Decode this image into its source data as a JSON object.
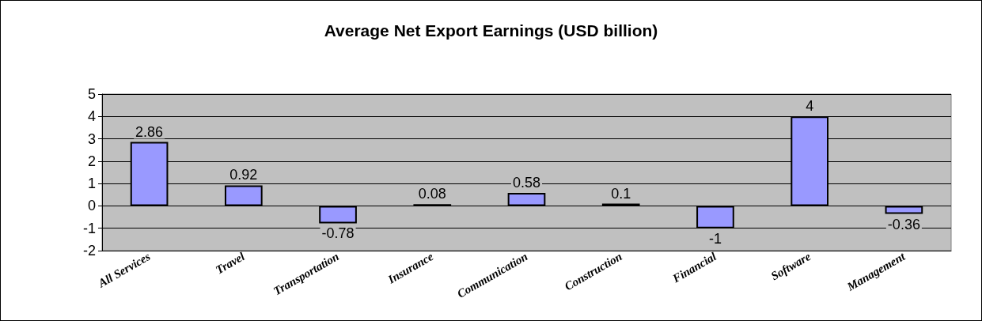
{
  "chart_data": {
    "type": "bar",
    "title": "Average Net Export Earnings (USD billion)",
    "categories": [
      "All Services",
      "Travel",
      "Transportation",
      "Insurance",
      "Communication",
      "Construction",
      "Financial",
      "Software",
      "Management"
    ],
    "values": [
      2.86,
      0.92,
      -0.78,
      0.08,
      0.58,
      0.1,
      -1,
      4,
      -0.36
    ],
    "color": "#9999ff",
    "ylim": [
      -2,
      5
    ],
    "yticks": [
      -2,
      -1,
      0,
      1,
      2,
      3,
      4,
      5
    ],
    "grid": "y",
    "data_labels": true
  }
}
